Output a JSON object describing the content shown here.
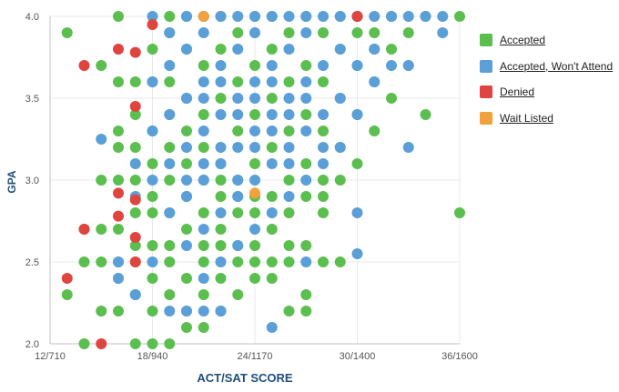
{
  "chart_data": {
    "type": "scatter",
    "title": "",
    "xlabel": "ACT/SAT SCORE",
    "ylabel": "GPA",
    "x_ticks": [
      "12/710",
      "18/940",
      "24/1170",
      "30/1400",
      "36/1600"
    ],
    "y_ticks": [
      "2.0",
      "2.5",
      "3.0",
      "3.5",
      "4.0"
    ],
    "xlim": [
      12,
      36
    ],
    "ylim": [
      2.0,
      4.0
    ],
    "legend_position": "right",
    "series": [
      {
        "name": "Accepted",
        "color": "#5bbf4f",
        "points": [
          [
            13,
            3.9
          ],
          [
            13,
            2.3
          ],
          [
            14,
            2.5
          ],
          [
            14,
            2.7
          ],
          [
            14,
            2.0
          ],
          [
            15,
            2.5
          ],
          [
            15,
            2.7
          ],
          [
            15,
            3.0
          ],
          [
            15,
            2.2
          ],
          [
            15,
            3.7
          ],
          [
            16,
            2.5
          ],
          [
            16,
            3.0
          ],
          [
            16,
            3.2
          ],
          [
            16,
            2.7
          ],
          [
            16,
            2.2
          ],
          [
            16,
            2.4
          ],
          [
            16,
            3.3
          ],
          [
            16,
            3.6
          ],
          [
            16,
            4.0
          ],
          [
            17,
            2.5
          ],
          [
            17,
            2.8
          ],
          [
            17,
            3.0
          ],
          [
            17,
            3.2
          ],
          [
            17,
            3.4
          ],
          [
            17,
            2.3
          ],
          [
            17,
            2.0
          ],
          [
            17,
            3.6
          ],
          [
            17,
            2.6
          ],
          [
            18,
            2.2
          ],
          [
            18,
            2.6
          ],
          [
            18,
            2.9
          ],
          [
            18,
            3.1
          ],
          [
            18,
            3.3
          ],
          [
            18,
            3.6
          ],
          [
            18,
            2.4
          ],
          [
            18,
            2.0
          ],
          [
            18,
            3.8
          ],
          [
            18,
            2.8
          ],
          [
            19,
            2.3
          ],
          [
            19,
            2.6
          ],
          [
            19,
            2.8
          ],
          [
            19,
            3.0
          ],
          [
            19,
            3.2
          ],
          [
            19,
            3.4
          ],
          [
            19,
            3.6
          ],
          [
            19,
            4.0
          ],
          [
            19,
            2.0
          ],
          [
            19,
            2.5
          ],
          [
            19,
            3.9
          ],
          [
            20,
            2.1
          ],
          [
            20,
            2.4
          ],
          [
            20,
            2.7
          ],
          [
            20,
            2.9
          ],
          [
            20,
            3.1
          ],
          [
            20,
            3.3
          ],
          [
            20,
            3.5
          ],
          [
            20,
            3.8
          ],
          [
            20,
            2.2
          ],
          [
            20,
            4.0
          ],
          [
            21,
            2.3
          ],
          [
            21,
            2.5
          ],
          [
            21,
            2.8
          ],
          [
            21,
            3.0
          ],
          [
            21,
            3.2
          ],
          [
            21,
            3.4
          ],
          [
            21,
            3.7
          ],
          [
            21,
            4.0
          ],
          [
            21,
            2.1
          ],
          [
            21,
            2.6
          ],
          [
            22,
            2.2
          ],
          [
            22,
            2.4
          ],
          [
            22,
            2.6
          ],
          [
            22,
            2.9
          ],
          [
            22,
            3.1
          ],
          [
            22,
            3.5
          ],
          [
            22,
            3.8
          ],
          [
            22,
            4.0
          ],
          [
            22,
            2.7
          ],
          [
            22,
            3.0
          ],
          [
            23,
            2.3
          ],
          [
            23,
            2.5
          ],
          [
            23,
            2.8
          ],
          [
            23,
            3.0
          ],
          [
            23,
            3.3
          ],
          [
            23,
            3.6
          ],
          [
            23,
            3.9
          ],
          [
            23,
            2.6
          ],
          [
            23,
            2.9
          ],
          [
            24,
            2.4
          ],
          [
            24,
            2.6
          ],
          [
            24,
            2.9
          ],
          [
            24,
            3.1
          ],
          [
            24,
            3.4
          ],
          [
            24,
            3.7
          ],
          [
            24,
            4.0
          ],
          [
            24,
            2.5
          ],
          [
            24,
            2.8
          ],
          [
            25,
            2.4
          ],
          [
            25,
            2.7
          ],
          [
            25,
            2.9
          ],
          [
            25,
            3.2
          ],
          [
            25,
            3.5
          ],
          [
            25,
            3.8
          ],
          [
            25,
            4.0
          ],
          [
            25,
            2.5
          ],
          [
            26,
            2.5
          ],
          [
            26,
            2.8
          ],
          [
            26,
            3.0
          ],
          [
            26,
            3.3
          ],
          [
            26,
            3.6
          ],
          [
            26,
            3.9
          ],
          [
            26,
            2.6
          ],
          [
            26,
            2.2
          ],
          [
            27,
            2.3
          ],
          [
            27,
            2.6
          ],
          [
            27,
            2.9
          ],
          [
            27,
            3.1
          ],
          [
            27,
            3.4
          ],
          [
            27,
            3.7
          ],
          [
            27,
            4.0
          ],
          [
            27,
            2.2
          ],
          [
            28,
            2.5
          ],
          [
            28,
            2.8
          ],
          [
            28,
            3.0
          ],
          [
            28,
            3.3
          ],
          [
            28,
            3.6
          ],
          [
            28,
            3.9
          ],
          [
            28,
            2.9
          ],
          [
            29,
            3.0
          ],
          [
            29,
            3.2
          ],
          [
            29,
            3.5
          ],
          [
            29,
            3.8
          ],
          [
            29,
            4.0
          ],
          [
            29,
            2.5
          ],
          [
            30,
            3.1
          ],
          [
            30,
            3.4
          ],
          [
            30,
            3.7
          ],
          [
            30,
            3.9
          ],
          [
            30,
            4.0
          ],
          [
            31,
            3.3
          ],
          [
            31,
            3.6
          ],
          [
            31,
            3.9
          ],
          [
            31,
            3.8
          ],
          [
            32,
            3.5
          ],
          [
            32,
            3.8
          ],
          [
            32,
            4.0
          ],
          [
            33,
            3.7
          ],
          [
            33,
            3.9
          ],
          [
            34,
            3.4
          ],
          [
            34,
            4.0
          ],
          [
            36,
            4.0
          ],
          [
            36,
            2.8
          ]
        ]
      },
      {
        "name": "Accepted, Won't Attend",
        "color": "#5a9fd8",
        "points": [
          [
            15,
            3.25
          ],
          [
            16,
            2.5
          ],
          [
            16,
            2.4
          ],
          [
            17,
            2.9
          ],
          [
            17,
            3.1
          ],
          [
            17,
            2.3
          ],
          [
            18,
            3.0
          ],
          [
            18,
            3.3
          ],
          [
            18,
            3.6
          ],
          [
            18,
            4.0
          ],
          [
            18,
            2.5
          ],
          [
            19,
            2.8
          ],
          [
            19,
            3.1
          ],
          [
            19,
            3.4
          ],
          [
            19,
            3.7
          ],
          [
            19,
            2.2
          ],
          [
            19,
            3.9
          ],
          [
            20,
            2.6
          ],
          [
            20,
            2.9
          ],
          [
            20,
            3.2
          ],
          [
            20,
            3.5
          ],
          [
            20,
            3.8
          ],
          [
            20,
            2.2
          ],
          [
            20,
            4.0
          ],
          [
            20,
            3.0
          ],
          [
            21,
            2.4
          ],
          [
            21,
            2.7
          ],
          [
            21,
            3.0
          ],
          [
            21,
            3.3
          ],
          [
            21,
            3.6
          ],
          [
            21,
            3.9
          ],
          [
            21,
            2.2
          ],
          [
            21,
            3.1
          ],
          [
            21,
            3.5
          ],
          [
            21,
            4.0
          ],
          [
            22,
            2.5
          ],
          [
            22,
            2.8
          ],
          [
            22,
            3.1
          ],
          [
            22,
            3.4
          ],
          [
            22,
            3.7
          ],
          [
            22,
            4.0
          ],
          [
            22,
            2.2
          ],
          [
            22,
            3.2
          ],
          [
            22,
            3.6
          ],
          [
            23,
            2.6
          ],
          [
            23,
            2.9
          ],
          [
            23,
            3.2
          ],
          [
            23,
            3.5
          ],
          [
            23,
            3.8
          ],
          [
            23,
            3.0
          ],
          [
            23,
            3.4
          ],
          [
            23,
            4.0
          ],
          [
            24,
            2.7
          ],
          [
            24,
            3.0
          ],
          [
            24,
            3.3
          ],
          [
            24,
            3.6
          ],
          [
            24,
            3.9
          ],
          [
            24,
            3.2
          ],
          [
            24,
            3.5
          ],
          [
            24,
            4.0
          ],
          [
            25,
            2.8
          ],
          [
            25,
            3.1
          ],
          [
            25,
            3.4
          ],
          [
            25,
            3.7
          ],
          [
            25,
            4.0
          ],
          [
            25,
            2.1
          ],
          [
            25,
            3.3
          ],
          [
            25,
            3.6
          ],
          [
            26,
            2.9
          ],
          [
            26,
            3.2
          ],
          [
            26,
            3.5
          ],
          [
            26,
            3.8
          ],
          [
            26,
            3.1
          ],
          [
            26,
            3.4
          ],
          [
            26,
            4.0
          ],
          [
            27,
            3.0
          ],
          [
            27,
            3.3
          ],
          [
            27,
            3.6
          ],
          [
            27,
            3.9
          ],
          [
            27,
            2.5
          ],
          [
            27,
            3.5
          ],
          [
            27,
            4.0
          ],
          [
            28,
            3.1
          ],
          [
            28,
            3.4
          ],
          [
            28,
            3.7
          ],
          [
            28,
            4.0
          ],
          [
            28,
            3.2
          ],
          [
            29,
            3.2
          ],
          [
            29,
            3.5
          ],
          [
            29,
            3.8
          ],
          [
            29,
            4.0
          ],
          [
            30,
            3.4
          ],
          [
            30,
            3.7
          ],
          [
            30,
            2.8
          ],
          [
            30,
            2.55
          ],
          [
            30,
            4.0
          ],
          [
            31,
            3.6
          ],
          [
            31,
            3.8
          ],
          [
            31,
            4.0
          ],
          [
            32,
            3.7
          ],
          [
            32,
            4.0
          ],
          [
            33,
            3.2
          ],
          [
            33,
            3.7
          ],
          [
            33,
            4.0
          ],
          [
            34,
            4.0
          ],
          [
            35,
            4.0
          ],
          [
            35,
            3.9
          ]
        ]
      },
      {
        "name": "Denied",
        "color": "#e0443f",
        "points": [
          [
            13,
            2.4
          ],
          [
            14,
            2.7
          ],
          [
            14,
            3.7
          ],
          [
            15,
            2.0
          ],
          [
            16,
            2.78
          ],
          [
            16,
            3.8
          ],
          [
            16,
            2.92
          ],
          [
            17,
            2.5
          ],
          [
            17,
            3.78
          ],
          [
            17,
            2.88
          ],
          [
            17,
            2.65
          ],
          [
            17,
            3.45
          ],
          [
            18,
            3.95
          ],
          [
            30,
            4.0
          ]
        ]
      },
      {
        "name": "Wait Listed",
        "color": "#f2a13c",
        "points": [
          [
            21,
            4.0
          ],
          [
            24,
            2.92
          ]
        ]
      }
    ]
  }
}
